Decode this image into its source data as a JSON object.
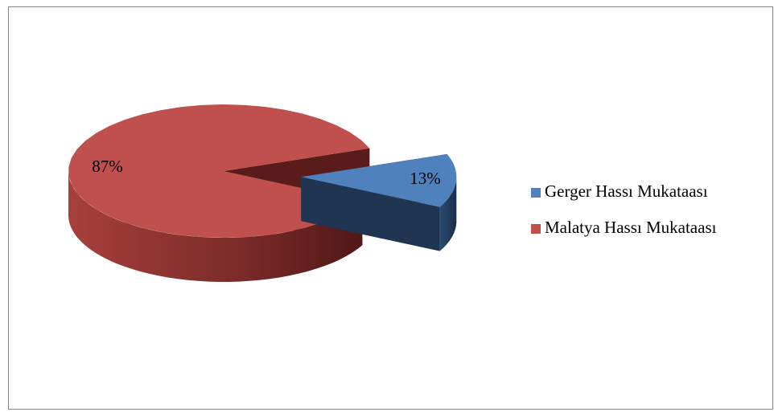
{
  "chart_data": {
    "type": "pie",
    "categories": [
      "Gerger Hassı Mukataası",
      "Malatya Hassı Mukataası"
    ],
    "values": [
      13,
      87
    ],
    "value_labels": [
      "13%",
      "87%"
    ],
    "colors": [
      "#4f81bd",
      "#c0504d"
    ],
    "legend": "right"
  }
}
